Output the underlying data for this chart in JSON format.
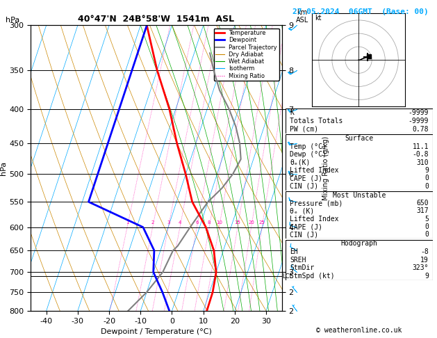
{
  "title_left": "40°47'N  24B°58'W  1541m  ASL",
  "title_right": "27.05.2024  06GMT  (Base: 00)",
  "xlabel": "Dewpoint / Temperature (°C)",
  "ylabel_left": "hPa",
  "pressure_levels": [
    300,
    350,
    400,
    450,
    500,
    550,
    600,
    650,
    700,
    750,
    800
  ],
  "temp_profile": [
    [
      -38,
      300
    ],
    [
      -30,
      350
    ],
    [
      -22,
      400
    ],
    [
      -16,
      450
    ],
    [
      -10,
      500
    ],
    [
      -5,
      550
    ],
    [
      2,
      600
    ],
    [
      7,
      650
    ],
    [
      10,
      700
    ],
    [
      11,
      750
    ],
    [
      11.1,
      800
    ]
  ],
  "dewp_profile": [
    [
      -38,
      300
    ],
    [
      -38,
      350
    ],
    [
      -38,
      400
    ],
    [
      -38,
      450
    ],
    [
      -38,
      500
    ],
    [
      -38,
      550
    ],
    [
      -18,
      600
    ],
    [
      -12,
      650
    ],
    [
      -10,
      700
    ],
    [
      -5,
      750
    ],
    [
      -0.8,
      800
    ]
  ],
  "parcel_profile": [
    [
      -15,
      330
    ],
    [
      -12,
      350
    ],
    [
      -8,
      375
    ],
    [
      -3,
      400
    ],
    [
      1,
      425
    ],
    [
      4,
      450
    ],
    [
      6,
      475
    ],
    [
      5,
      500
    ],
    [
      3,
      525
    ],
    [
      0,
      550
    ],
    [
      -3,
      600
    ],
    [
      -5,
      640
    ],
    [
      -6,
      650
    ],
    [
      -7,
      700
    ],
    [
      -10,
      750
    ],
    [
      -14,
      800
    ]
  ],
  "xlim": [
    -45,
    35
  ],
  "ylim_p": [
    300,
    800
  ],
  "mixing_ratio_values": [
    1,
    2,
    3,
    4,
    6,
    8,
    10,
    15,
    20,
    25
  ],
  "lcl_pressure": 710,
  "skew_factor": 30,
  "background_color": "#ffffff",
  "color_temp": "#ff0000",
  "color_dewp": "#0000ff",
  "color_parcel": "#808080",
  "color_dry_adiabat": "#cc8800",
  "color_wet_adiabat": "#00aa00",
  "color_isotherm": "#00aaff",
  "color_mixing": "#ff00aa",
  "color_isobar": "#000000",
  "km_asl": {
    "300": "9",
    "350": "8",
    "400": "7",
    "500": "6",
    "600": "4",
    "700": "3",
    "750": "2",
    "800": "2"
  },
  "info_K": "-9999",
  "info_TT": "-9999",
  "info_PW": "0.78",
  "info_surf_temp": "11.1",
  "info_surf_dewp": "-0.8",
  "info_surf_theta": "310",
  "info_surf_li": "9",
  "info_surf_cape": "0",
  "info_surf_cin": "0",
  "info_mu_pres": "650",
  "info_mu_theta": "317",
  "info_mu_li": "5",
  "info_mu_cape": "0",
  "info_mu_cin": "0",
  "info_eh": "-8",
  "info_sreh": "19",
  "info_stmdir": "323°",
  "info_stmspd": "9"
}
